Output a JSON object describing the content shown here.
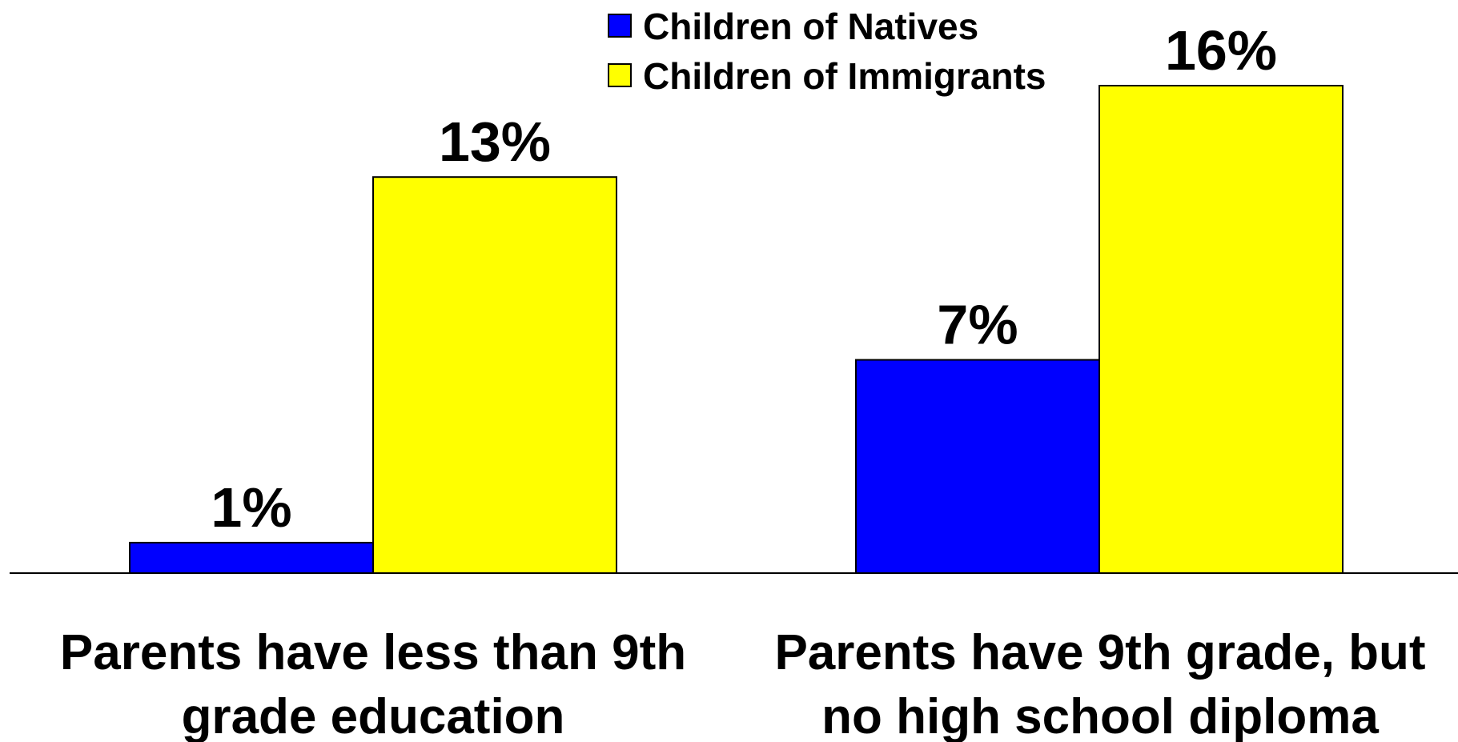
{
  "chart_data": {
    "type": "bar",
    "categories": [
      [
        "Parents have less than 9th",
        "grade education"
      ],
      [
        "Parents have 9th grade, but",
        "no high school diploma"
      ]
    ],
    "series": [
      {
        "name": "Children of Natives",
        "color": "#0000FF",
        "values": [
          1,
          7
        ],
        "labels": [
          "1%",
          "7%"
        ]
      },
      {
        "name": "Children of Immigrants",
        "color": "#FFFF00",
        "values": [
          13,
          16
        ],
        "labels": [
          "13%",
          "16%"
        ]
      }
    ],
    "ylim": [
      0,
      18
    ],
    "grid": false,
    "legend": "top-center",
    "title": "",
    "xlabel": "",
    "ylabel": ""
  }
}
